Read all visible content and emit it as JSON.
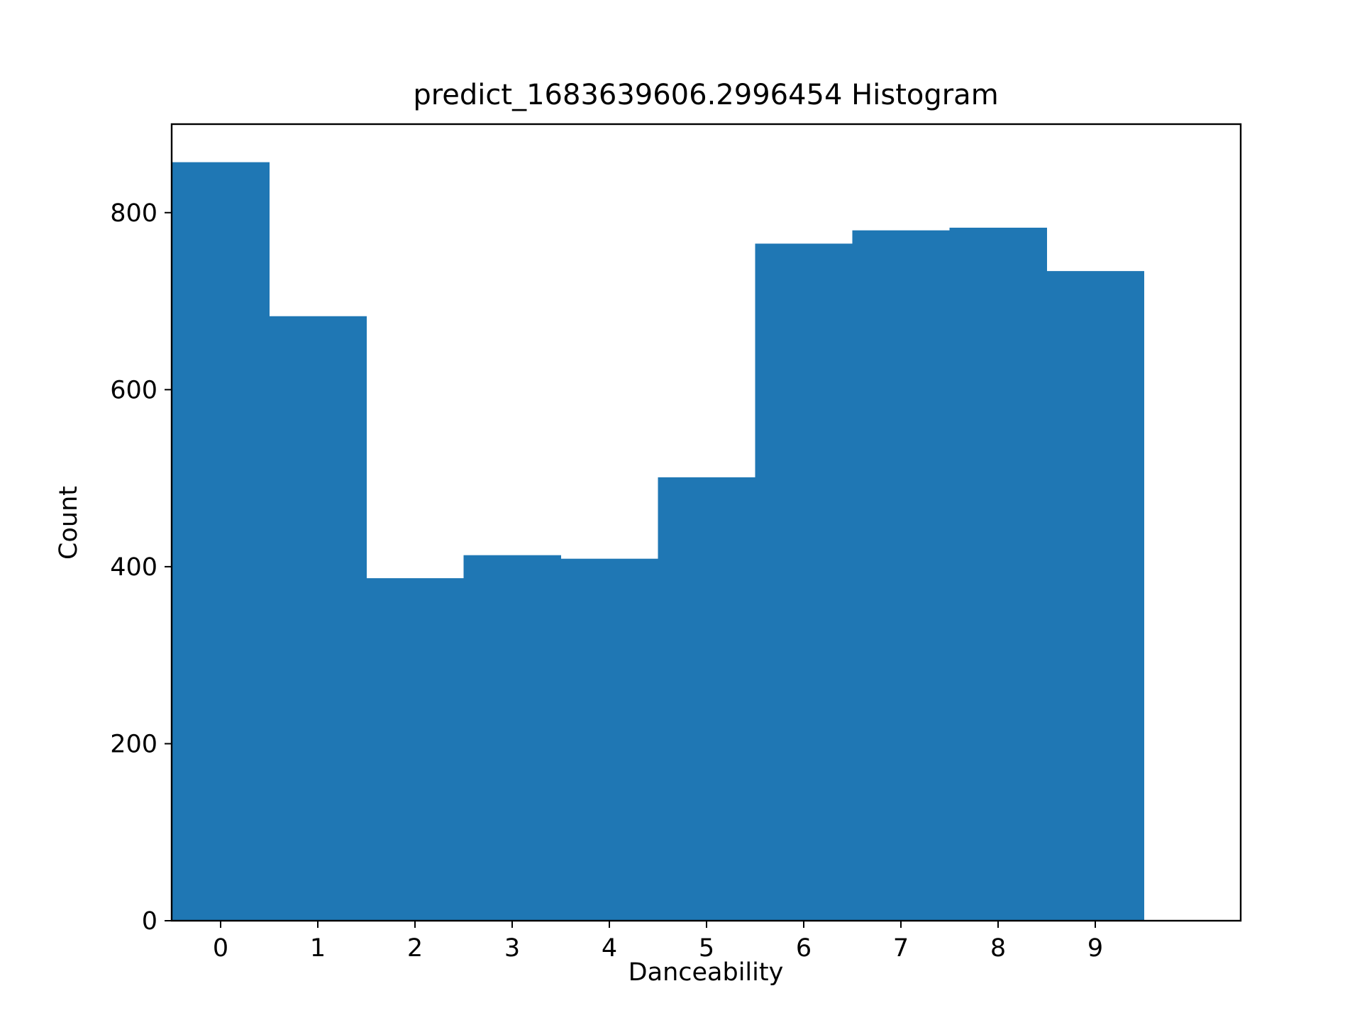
{
  "chart_data": {
    "type": "bar",
    "title": "predict_1683639606.2996454 Histogram",
    "xlabel": "Danceability",
    "ylabel": "Count",
    "categories": [
      "0",
      "1",
      "2",
      "3",
      "4",
      "5",
      "6",
      "7",
      "8",
      "9"
    ],
    "values": [
      857,
      683,
      387,
      413,
      409,
      501,
      765,
      780,
      783,
      734
    ],
    "xlim": [
      -1,
      10
    ],
    "ylim": [
      0,
      900
    ],
    "yticks": [
      0,
      200,
      400,
      600,
      800
    ],
    "xticks": [
      0,
      1,
      2,
      3,
      4,
      5,
      6,
      7,
      8,
      9
    ],
    "bar_color": "#1f77b4",
    "grid": false,
    "legend": false
  }
}
